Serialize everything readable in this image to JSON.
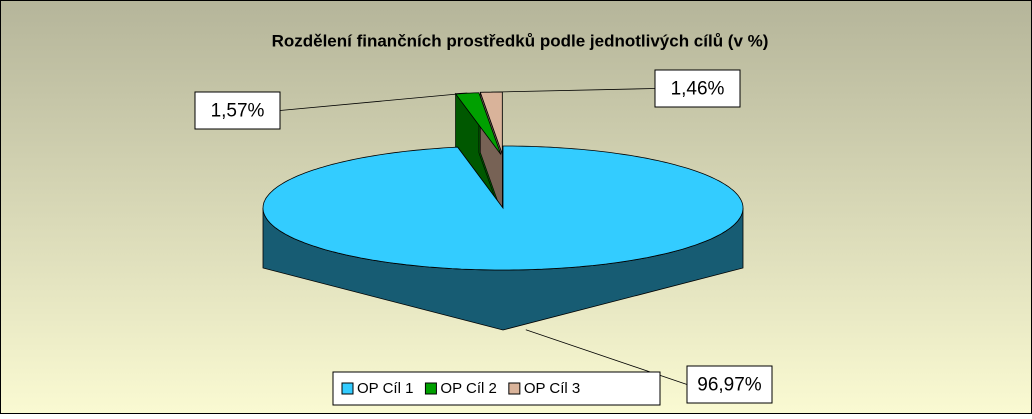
{
  "chart_data": {
    "type": "pie",
    "title": "Rozdělení finančních prostředků podle jednotlivých cílů (v %)",
    "categories": [
      "OP Cíl 1",
      "OP Cíl 2",
      "OP Cíl 3"
    ],
    "values": [
      96.97,
      1.57,
      1.46
    ],
    "value_labels": [
      "96,97%",
      "1,57%",
      "1,46%"
    ],
    "colors": [
      "#33ccff",
      "#00a000",
      "#d9b39a"
    ],
    "legend": "bottom"
  }
}
